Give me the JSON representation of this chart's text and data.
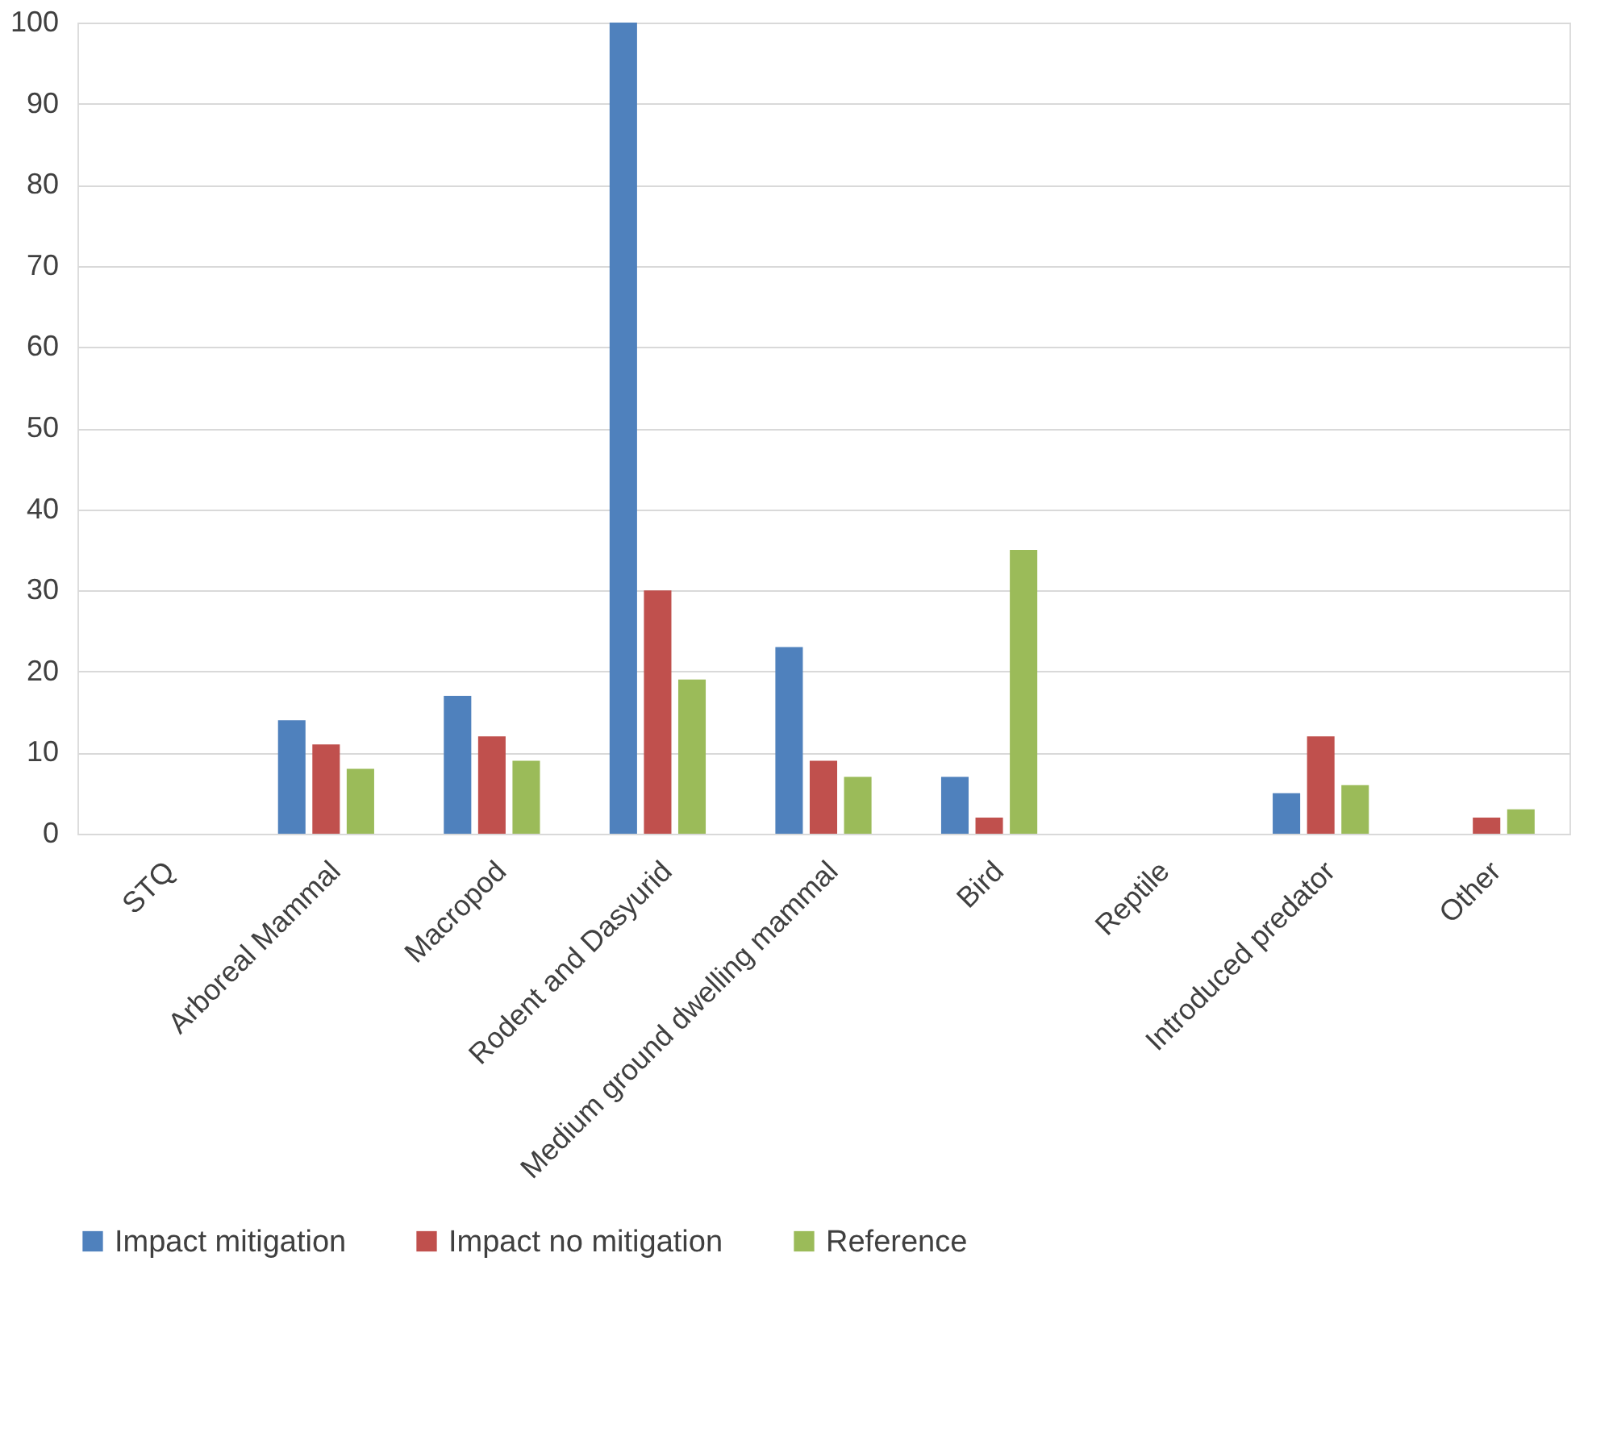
{
  "chart_data": {
    "type": "bar",
    "categories": [
      "STQ",
      "Arboreal Mammal",
      "Macropod",
      "Rodent and Dasyurid",
      "Medium ground dwelling mammal",
      "Bird",
      "Reptile",
      "Introduced predator",
      "Other"
    ],
    "series": [
      {
        "name": "Impact mitigation",
        "color": "#4f81bd",
        "values": [
          0,
          14,
          17,
          100,
          23,
          7,
          0,
          5,
          0
        ]
      },
      {
        "name": "Impact no mitigation",
        "color": "#c0504d",
        "values": [
          0,
          11,
          12,
          30,
          9,
          2,
          0,
          12,
          2
        ]
      },
      {
        "name": "Reference",
        "color": "#9bbb59",
        "values": [
          0,
          8,
          9,
          19,
          7,
          35,
          0,
          6,
          3
        ]
      }
    ],
    "ylim": [
      0,
      100
    ],
    "yticks": [
      0,
      10,
      20,
      30,
      40,
      50,
      60,
      70,
      80,
      90,
      100
    ],
    "grid": "y",
    "legend": "bottom"
  }
}
